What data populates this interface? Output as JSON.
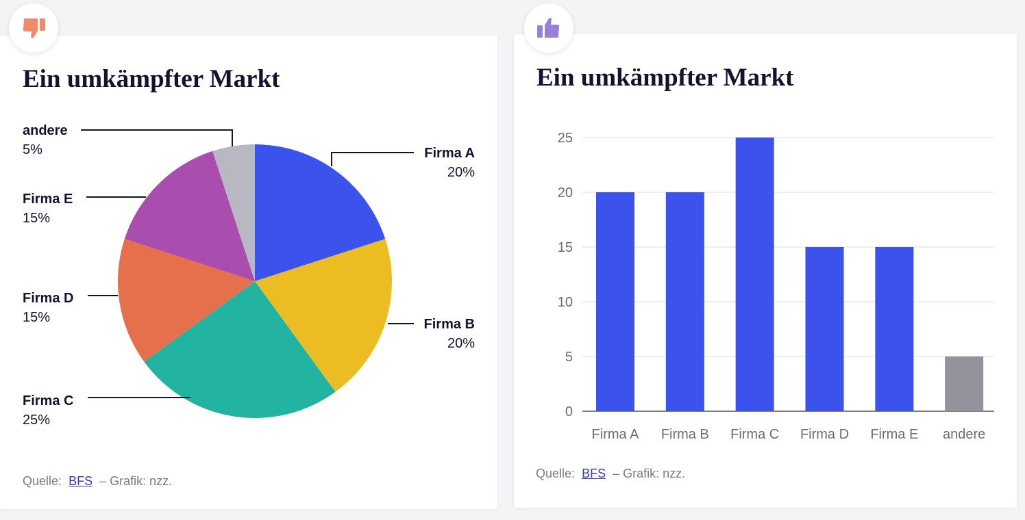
{
  "left_card": {
    "title": "Ein umkämpfter Markt",
    "badge_icon": "thumbs-down-icon",
    "badge_color": "#f08a6c",
    "source_prefix": "Quelle:",
    "source_link": "BFS",
    "source_suffix": "– Grafik: nzz."
  },
  "right_card": {
    "title": "Ein umkämpfter Markt",
    "badge_icon": "thumbs-up-icon",
    "badge_color": "#9a7fd8",
    "source_prefix": "Quelle:",
    "source_link": "BFS",
    "source_suffix": "– Grafik: nzz."
  },
  "chart_data": [
    {
      "type": "pie",
      "title": "Ein umkämpfter Markt",
      "slices": [
        {
          "label": "Firma A",
          "value": 20,
          "value_label": "20%",
          "color": "#3b52ec"
        },
        {
          "label": "Firma B",
          "value": 20,
          "value_label": "20%",
          "color": "#ebbd22"
        },
        {
          "label": "Firma C",
          "value": 25,
          "value_label": "25%",
          "color": "#22b4a0"
        },
        {
          "label": "Firma D",
          "value": 15,
          "value_label": "15%",
          "color": "#e5704b"
        },
        {
          "label": "Firma E",
          "value": 15,
          "value_label": "15%",
          "color": "#a94dae"
        },
        {
          "label": "andere",
          "value": 5,
          "value_label": "5%",
          "color": "#b8b8c2"
        }
      ]
    },
    {
      "type": "bar",
      "title": "Ein umkämpfter Markt",
      "categories": [
        "Firma A",
        "Firma B",
        "Firma C",
        "Firma D",
        "Firma E",
        "andere"
      ],
      "values": [
        20,
        20,
        25,
        15,
        15,
        5
      ],
      "colors": [
        "#3b52ec",
        "#3b52ec",
        "#3b52ec",
        "#3b52ec",
        "#3b52ec",
        "#93939e"
      ],
      "ylim": [
        0,
        25
      ],
      "yticks": [
        0,
        5,
        10,
        15,
        20,
        25
      ],
      "grid": true,
      "xlabel": "",
      "ylabel": ""
    }
  ]
}
